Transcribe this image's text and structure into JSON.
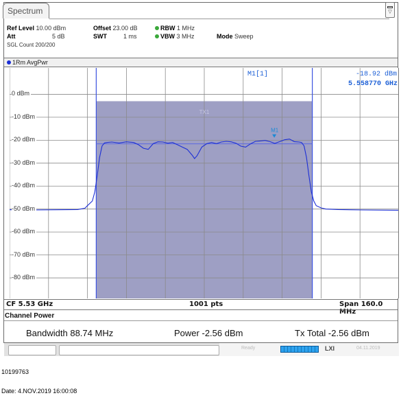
{
  "window": {
    "tab_label": "Spectrum"
  },
  "settings": {
    "row1": {
      "ref_level_label": "Ref Level",
      "ref_level_value": "10.00 dBm",
      "offset_label": "Offset",
      "offset_value": "23.00 dB",
      "rbw_label": "RBW",
      "rbw_value": "1 MHz"
    },
    "row2": {
      "att_label": "Att",
      "att_value": "5 dB",
      "swt_label": "SWT",
      "swt_value": "1 ms",
      "vbw_label": "VBW",
      "vbw_value": "3 MHz",
      "mode_label": "Mode",
      "mode_value": "Sweep"
    },
    "row3": {
      "sgl_count": "SGL Count 200/200"
    },
    "status_color": "#3aa83a"
  },
  "trace": {
    "label": "1Rm AvgPwr",
    "color": "#1c2fd6"
  },
  "marker": {
    "name": "M1[1]",
    "level": "-18.92 dBm",
    "frequency": "5.558770 GHz",
    "on_plot_label": "M1"
  },
  "channel": {
    "label": "TX1",
    "fill_color": "#9e9fc4"
  },
  "footer": {
    "cf": "CF 5.53 GHz",
    "points": "1001 pts",
    "span": "Span 160.0 MHz"
  },
  "channel_power": {
    "title": "Channel Power",
    "bandwidth_label": "Bandwidth",
    "bandwidth_value": "88.74 MHz",
    "power_label": "Power",
    "power_value": "-2.56 dBm",
    "tx_total_label": "Tx Total",
    "tx_total_value": "-2.56 dBm"
  },
  "statusbar": {
    "ready_text": "Ready",
    "lxi_text": "LXI",
    "date_text": "04.11.2019"
  },
  "caption": {
    "id": "10199763",
    "date": "Date: 4.NOV.2019 16:00:08"
  },
  "chart_data": {
    "type": "line",
    "xlabel": "",
    "ylabel": "",
    "x_unit": "MHz offset from CF",
    "x_range": [
      -80,
      80
    ],
    "y_range": [
      -90,
      10
    ],
    "y_ticks": [
      {
        "value": 0,
        "label": "0 dBm"
      },
      {
        "value": -10,
        "label": "-10 dBm"
      },
      {
        "value": -20,
        "label": "-20 dBm"
      },
      {
        "value": -30,
        "label": "-30 dBm"
      },
      {
        "value": -40,
        "label": "-40 dBm"
      },
      {
        "value": -50,
        "label": "-50 dBm"
      },
      {
        "value": -60,
        "label": "-60 dBm"
      },
      {
        "value": -70,
        "label": "-70 dBm"
      },
      {
        "value": -80,
        "label": "-80 dBm"
      }
    ],
    "grid": true,
    "channel_band": [
      -44.4,
      44.4
    ],
    "channel_top": -3,
    "series": [
      {
        "x": [
          -80,
          -70,
          -60,
          -52,
          -49,
          -48,
          -46,
          -45,
          -44,
          -43,
          -42,
          -41,
          -40,
          -38,
          -35,
          -32,
          -29,
          -27,
          -25,
          -23,
          -21,
          -19,
          -17,
          -15,
          -13,
          -11,
          -9,
          -7,
          -5,
          -4,
          -3,
          -1,
          1,
          3,
          5,
          7,
          9,
          11,
          13,
          15,
          17,
          19,
          21,
          23,
          25,
          27,
          29,
          31,
          33,
          35,
          37,
          39,
          40,
          41,
          42,
          43,
          44,
          45,
          46,
          48,
          50,
          55,
          65,
          80
        ],
        "y": [
          -50.3,
          -50.4,
          -50.3,
          -50.2,
          -49.6,
          -48.5,
          -46.5,
          -42.5,
          -35.5,
          -27.5,
          -22.5,
          -21.2,
          -21.0,
          -20.8,
          -21.2,
          -20.7,
          -21.0,
          -22.0,
          -23.5,
          -24.0,
          -21.5,
          -20.7,
          -20.8,
          -21.3,
          -21.0,
          -22.0,
          -23.0,
          -24.0,
          -26.5,
          -28.0,
          -26.8,
          -23.0,
          -21.5,
          -21.0,
          -21.5,
          -20.8,
          -20.5,
          -20.7,
          -21.3,
          -22.6,
          -23.0,
          -21.6,
          -20.5,
          -20.3,
          -20.1,
          -20.6,
          -21.4,
          -20.6,
          -19.8,
          -19.5,
          -20.6,
          -20.8,
          -21.0,
          -22.5,
          -27.5,
          -35.5,
          -42.5,
          -46.5,
          -48.5,
          -49.5,
          -50.0,
          -50.2,
          -50.4,
          -50.5
        ]
      }
    ],
    "marker_point": {
      "x": 28.77,
      "y": -18.92
    }
  }
}
